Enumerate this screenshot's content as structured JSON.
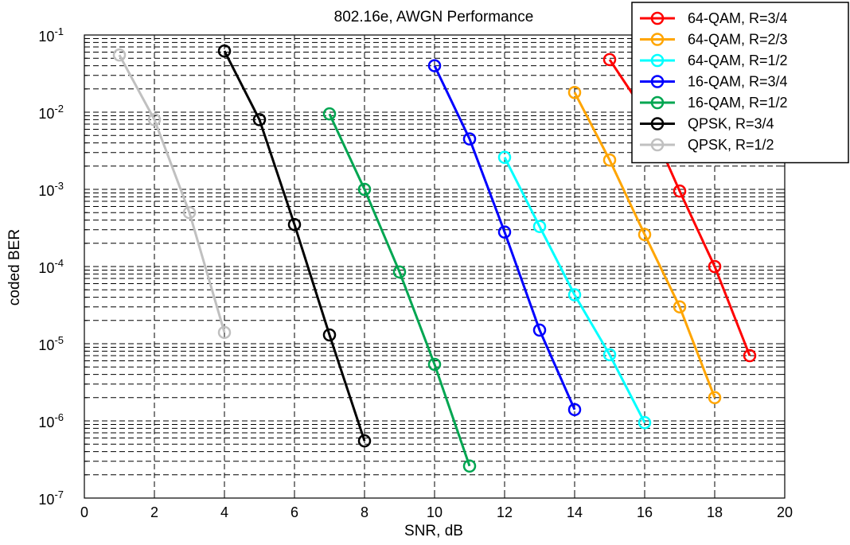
{
  "chart_data": {
    "type": "line",
    "title": "802.16e, AWGN Performance",
    "xlabel": "SNR, dB",
    "ylabel": "coded BER",
    "xlim": [
      0,
      20
    ],
    "ylim": [
      1e-07,
      0.1
    ],
    "yscale": "log",
    "grid": true,
    "legend_position": "top-right",
    "xticks": [
      "0",
      "2",
      "4",
      "6",
      "8",
      "10",
      "12",
      "14",
      "16",
      "18",
      "20"
    ],
    "yticks": [
      {
        "base": "10",
        "exp": "-7"
      },
      {
        "base": "10",
        "exp": "-6"
      },
      {
        "base": "10",
        "exp": "-5"
      },
      {
        "base": "10",
        "exp": "-4"
      },
      {
        "base": "10",
        "exp": "-3"
      },
      {
        "base": "10",
        "exp": "-2"
      },
      {
        "base": "10",
        "exp": "-1"
      }
    ],
    "series": [
      {
        "name": "64-QAM, R=3/4",
        "color": "#ff0000",
        "x": [
          15,
          16,
          17,
          18,
          19
        ],
        "y": [
          0.048,
          0.01,
          0.00095,
          0.0001,
          7e-06
        ]
      },
      {
        "name": "64-QAM, R=2/3",
        "color": "#ffa500",
        "x": [
          14,
          15,
          16,
          17,
          18
        ],
        "y": [
          0.018,
          0.0024,
          0.00026,
          3e-05,
          2e-06
        ]
      },
      {
        "name": "64-QAM, R=1/2",
        "color": "#00ffff",
        "x": [
          12,
          13,
          14,
          15,
          16
        ],
        "y": [
          0.0026,
          0.00033,
          4.3e-05,
          7.2e-06,
          9.5e-07
        ]
      },
      {
        "name": "16-QAM, R=3/4",
        "color": "#0000ff",
        "x": [
          10,
          11,
          12,
          13,
          14
        ],
        "y": [
          0.04,
          0.0045,
          0.00028,
          1.5e-05,
          1.4e-06
        ]
      },
      {
        "name": "16-QAM, R=1/2",
        "color": "#00a651",
        "x": [
          7,
          8,
          9,
          10,
          11
        ],
        "y": [
          0.0095,
          0.001,
          8.5e-05,
          5.4e-06,
          2.6e-07
        ]
      },
      {
        "name": "QPSK, R=3/4",
        "color": "#000000",
        "x": [
          4,
          5,
          6,
          7,
          8
        ],
        "y": [
          0.062,
          0.008,
          0.00035,
          1.3e-05,
          5.5e-07
        ]
      },
      {
        "name": "QPSK, R=1/2",
        "color": "#c0c0c0",
        "x": [
          1,
          2,
          3,
          4
        ],
        "y": [
          0.055,
          0.008,
          0.0005,
          1.4e-05
        ]
      }
    ]
  }
}
